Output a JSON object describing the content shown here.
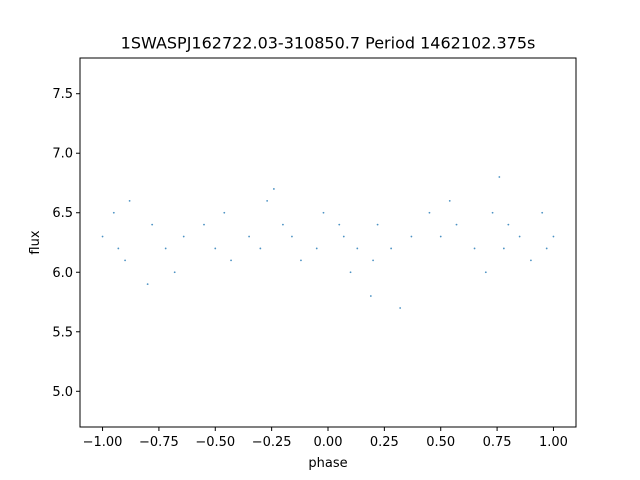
{
  "chart_data": {
    "type": "scatter",
    "title": "1SWASPJ162722.03-310850.7 Period 1462102.375s",
    "xlabel": "phase",
    "ylabel": "flux",
    "xlim": [
      -1.1,
      1.1
    ],
    "ylim": [
      4.7,
      7.8
    ],
    "x_ticks": [
      -1.0,
      -0.75,
      -0.5,
      -0.25,
      0.0,
      0.25,
      0.5,
      0.75,
      1.0
    ],
    "x_tick_labels": [
      "−1.00",
      "−0.75",
      "−0.50",
      "−0.25",
      "0.00",
      "0.25",
      "0.50",
      "0.75",
      "1.00"
    ],
    "y_ticks": [
      5.0,
      5.5,
      6.0,
      6.5,
      7.0,
      7.5
    ],
    "y_tick_labels": [
      "5.0",
      "5.5",
      "6.0",
      "6.5",
      "7.0",
      "7.5"
    ],
    "grid": false,
    "point_color": "#1f77b4",
    "series": [
      {
        "x": [
          -1.0,
          -0.95,
          -0.93,
          -0.9,
          -0.88,
          -0.8,
          -0.78,
          -0.72,
          -0.68,
          -0.64,
          -0.55,
          -0.5,
          -0.46,
          -0.43,
          -0.35,
          -0.3,
          -0.27,
          -0.24,
          -0.2,
          -0.16,
          -0.12,
          -0.05,
          -0.02,
          0.05,
          0.07,
          0.1,
          0.13,
          0.19,
          0.2,
          0.22,
          0.28,
          0.32,
          0.37,
          0.45,
          0.5,
          0.54,
          0.57,
          0.65,
          0.7,
          0.73,
          0.76,
          0.78,
          0.8,
          0.85,
          0.9,
          0.95,
          0.97,
          1.0
        ],
        "y": [
          6.3,
          6.5,
          6.2,
          6.1,
          6.6,
          5.9,
          6.4,
          6.2,
          6.0,
          6.3,
          6.4,
          6.2,
          6.5,
          6.1,
          6.3,
          6.2,
          6.6,
          6.7,
          6.4,
          6.3,
          6.1,
          6.2,
          6.5,
          6.4,
          6.3,
          6.0,
          6.2,
          5.8,
          6.1,
          6.4,
          6.2,
          5.7,
          6.3,
          6.5,
          6.3,
          6.6,
          6.4,
          6.2,
          6.0,
          6.5,
          6.8,
          6.2,
          6.4,
          6.3,
          6.1,
          6.5,
          6.2,
          6.3
        ]
      }
    ]
  }
}
